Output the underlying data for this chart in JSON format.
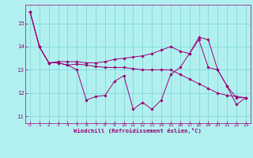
{
  "xlabel": "Windchill (Refroidissement éolien,°C)",
  "ylabel": "",
  "xlim": [
    -0.5,
    23.5
  ],
  "ylim": [
    10.7,
    15.8
  ],
  "yticks": [
    11,
    12,
    13,
    14,
    15
  ],
  "xticks": [
    0,
    1,
    2,
    3,
    4,
    5,
    6,
    7,
    8,
    9,
    10,
    11,
    12,
    13,
    14,
    15,
    16,
    17,
    18,
    19,
    20,
    21,
    22,
    23
  ],
  "bg_color": "#b2f0f0",
  "grid_color": "#80d8d8",
  "line_color": "#990077",
  "lines": [
    [
      15.5,
      14.0,
      13.3,
      13.3,
      13.2,
      13.0,
      11.7,
      11.85,
      11.9,
      12.5,
      12.75,
      11.3,
      11.6,
      11.3,
      11.7,
      12.8,
      13.1,
      13.7,
      14.3,
      13.1,
      13.0,
      12.3,
      11.5,
      11.8
    ],
    [
      15.5,
      14.0,
      13.3,
      13.3,
      13.2,
      13.25,
      13.2,
      13.15,
      13.1,
      13.1,
      13.1,
      13.05,
      13.0,
      13.0,
      13.0,
      13.0,
      12.8,
      12.6,
      12.4,
      12.2,
      12.0,
      11.9,
      11.85,
      11.8
    ],
    [
      15.5,
      14.0,
      13.3,
      13.35,
      13.35,
      13.35,
      13.3,
      13.3,
      13.35,
      13.45,
      13.5,
      13.55,
      13.6,
      13.7,
      13.85,
      14.0,
      13.8,
      13.7,
      14.4,
      14.3,
      13.0,
      12.3,
      11.8,
      11.8
    ]
  ]
}
